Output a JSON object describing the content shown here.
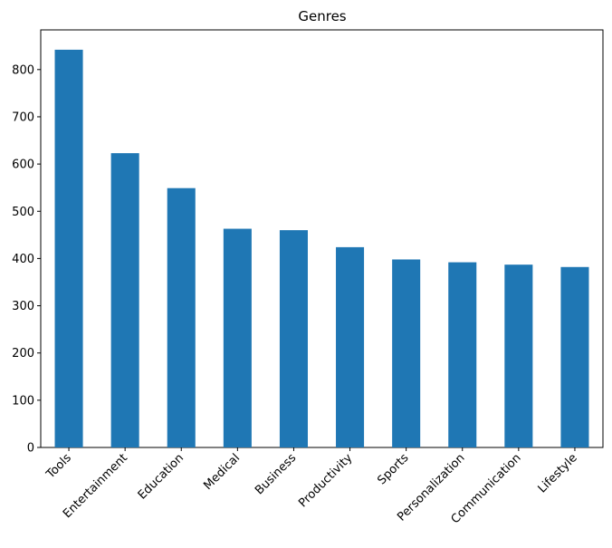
{
  "chart_data": {
    "type": "bar",
    "title": "Genres",
    "xlabel": "",
    "ylabel": "",
    "categories": [
      "Tools",
      "Entertainment",
      "Education",
      "Medical",
      "Business",
      "Productivity",
      "Sports",
      "Personalization",
      "Communication",
      "Lifestyle"
    ],
    "values": [
      842,
      623,
      549,
      463,
      460,
      424,
      398,
      392,
      387,
      382
    ],
    "ylim": [
      0,
      884
    ],
    "yticks": [
      0,
      100,
      200,
      300,
      400,
      500,
      600,
      700,
      800
    ],
    "grid": false,
    "legend": "none",
    "bar_color": "#1f77b4"
  }
}
